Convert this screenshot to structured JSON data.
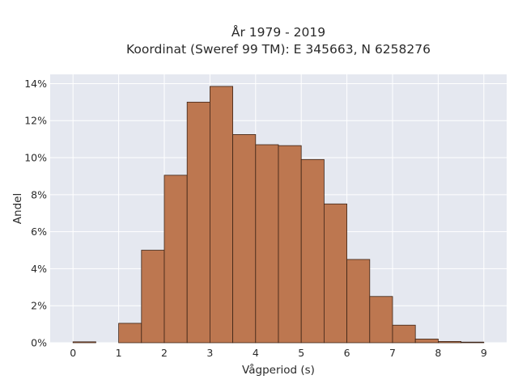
{
  "chart_data": {
    "type": "bar",
    "title_line1": "År 1979 - 2019",
    "title_line2": "Koordinat (Sweref 99 TM): E 345663, N 6258276",
    "xlabel": "Vågperiod (s)",
    "ylabel": "Andel",
    "xlim": [
      -0.5,
      9.5
    ],
    "ylim": [
      0,
      14.5
    ],
    "x_ticks": [
      0,
      1,
      2,
      3,
      4,
      5,
      6,
      7,
      8,
      9
    ],
    "y_ticks": [
      0,
      2,
      4,
      6,
      8,
      10,
      12,
      14
    ],
    "y_tick_suffix": "%",
    "bin_width": 0.5,
    "bins": [
      {
        "start": 0.0,
        "end": 0.5,
        "value": 0.05
      },
      {
        "start": 1.0,
        "end": 1.5,
        "value": 1.05
      },
      {
        "start": 1.5,
        "end": 2.0,
        "value": 5.0
      },
      {
        "start": 2.0,
        "end": 2.5,
        "value": 9.05
      },
      {
        "start": 2.5,
        "end": 3.0,
        "value": 13.0
      },
      {
        "start": 3.0,
        "end": 3.5,
        "value": 13.85
      },
      {
        "start": 3.5,
        "end": 4.0,
        "value": 11.25
      },
      {
        "start": 4.0,
        "end": 4.5,
        "value": 10.7
      },
      {
        "start": 4.5,
        "end": 5.0,
        "value": 10.65
      },
      {
        "start": 5.0,
        "end": 5.5,
        "value": 9.9
      },
      {
        "start": 5.5,
        "end": 6.0,
        "value": 7.5
      },
      {
        "start": 6.0,
        "end": 6.5,
        "value": 4.5
      },
      {
        "start": 6.5,
        "end": 7.0,
        "value": 2.5
      },
      {
        "start": 7.0,
        "end": 7.5,
        "value": 0.95
      },
      {
        "start": 7.5,
        "end": 8.0,
        "value": 0.2
      },
      {
        "start": 8.0,
        "end": 8.5,
        "value": 0.07
      },
      {
        "start": 8.5,
        "end": 9.0,
        "value": 0.03
      }
    ],
    "grid": true,
    "colors": {
      "plot_background": "#e5e8f0",
      "grid": "#ffffff",
      "bar_fill": "#bd7750",
      "bar_edge": "#3d2416"
    }
  }
}
